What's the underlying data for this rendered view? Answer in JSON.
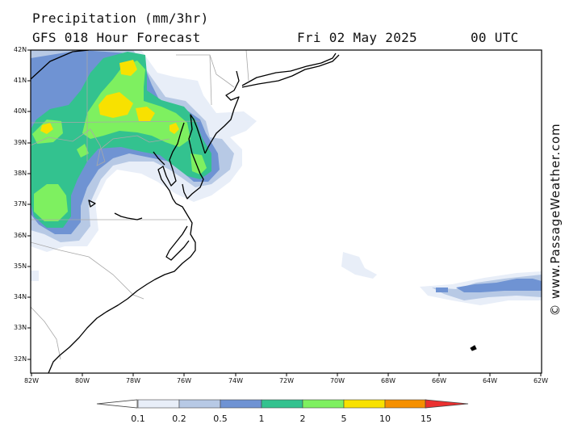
{
  "header": {
    "title": "Precipitation (mm/3hr)",
    "model_line": "GFS 018 Hour Forecast",
    "date": "Fri 02 May 2025",
    "time": "00 UTC"
  },
  "map": {
    "lat_labels": [
      "42N",
      "41N",
      "40N",
      "39N",
      "38N",
      "37N",
      "36N",
      "35N",
      "34N",
      "33N",
      "32N"
    ],
    "lon_labels": [
      "82W",
      "80W",
      "78W",
      "76W",
      "74W",
      "72W",
      "70W",
      "68W",
      "66W",
      "64W",
      "62W"
    ]
  },
  "colorbar": {
    "labels": [
      "0.1",
      "0.2",
      "0.5",
      "1",
      "2",
      "5",
      "10",
      "15"
    ],
    "colors": [
      "#ffffff",
      "#e8eef8",
      "#b7c9e5",
      "#6f93d3",
      "#33c28f",
      "#7ef060",
      "#f8e100",
      "#f59000",
      "#ea3030"
    ]
  },
  "credit": "© www.PassageWeather.com"
}
